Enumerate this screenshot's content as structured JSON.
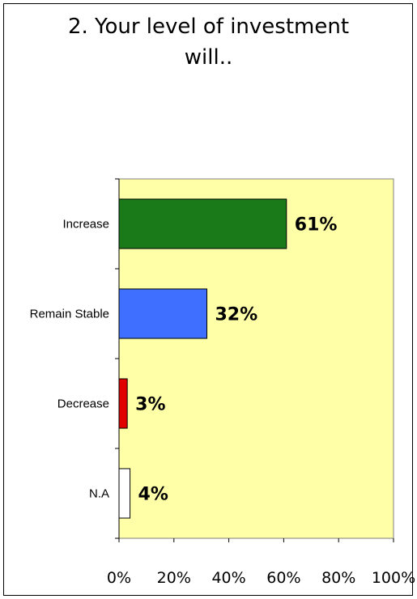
{
  "chart_data": {
    "type": "bar",
    "orientation": "horizontal",
    "title": "2. Your level of investment\nwill..",
    "categories": [
      "Increase",
      "Remain Stable",
      "Decrease",
      "N.A"
    ],
    "values": [
      61,
      32,
      3,
      4
    ],
    "data_labels": [
      "61%",
      "32%",
      "3%",
      "4%"
    ],
    "colors": [
      "#1a7a1a",
      "#3f6fff",
      "#e00000",
      "#ffffff"
    ],
    "xlim": [
      0,
      100
    ],
    "x_ticks": [
      0,
      20,
      40,
      60,
      80,
      100
    ],
    "x_tick_labels": [
      "0%",
      "20%",
      "40%",
      "60%",
      "80%",
      "100%"
    ],
    "plot_background": "#ffffa8",
    "grid": false,
    "legend": "none"
  }
}
